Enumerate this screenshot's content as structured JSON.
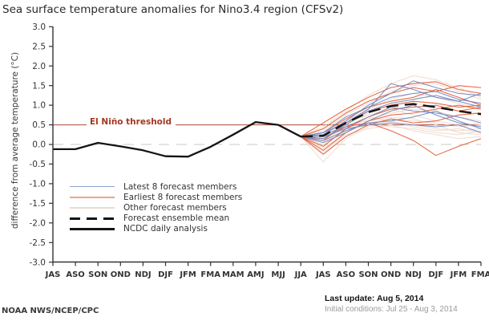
{
  "title": "Sea surface temperature anomalies for Nino3.4 region (CFSv2)",
  "y_axis_label": "difference from average temperature (°C)",
  "threshold": {
    "label": "El Niño threshold",
    "value": 0.5
  },
  "legend": {
    "items": [
      {
        "key": "latest",
        "label": "Latest 8 forecast members"
      },
      {
        "key": "earliest",
        "label": "Earliest 8 forecast members"
      },
      {
        "key": "other",
        "label": "Other forecast members"
      },
      {
        "key": "mean",
        "label": "Forecast ensemble mean"
      },
      {
        "key": "analysis",
        "label": "NCDC daily analysis"
      }
    ]
  },
  "footer": {
    "attribution": "NOAA NWS/NCEP/CPC",
    "last_update": "Last update: Aug 5, 2014",
    "initial_conditions": "Initial conditions: Jul 25 - Aug 3, 2014"
  },
  "colors": {
    "latest": "#7186bd",
    "earliest": "#e25a34",
    "other": "#eed9cd",
    "mean": "#141414",
    "analysis": "#141414",
    "threshold_line": "#ad4a32",
    "threshold_text": "#a5371f",
    "zero_line": "#c9c9c9",
    "axis": "#333333"
  },
  "chart_data": {
    "type": "line",
    "title": "Sea surface temperature anomalies for Nino3.4 region (CFSv2)",
    "xlabel": "",
    "ylabel": "difference from average temperature (°C)",
    "ylim": [
      -3.0,
      3.0
    ],
    "grid": false,
    "legend_position": "lower-left",
    "categories": [
      "JAS",
      "ASO",
      "SON",
      "OND",
      "NDJ",
      "DJF",
      "JFM",
      "FMA",
      "MAM",
      "AMJ",
      "MJJ",
      "JJA",
      "JAS",
      "ASO",
      "SON",
      "OND",
      "NDJ",
      "DJF",
      "JFM",
      "FMA"
    ],
    "y_ticks": [
      {
        "value": 3.0,
        "label": "3.0"
      },
      {
        "value": 2.5,
        "label": "2.5"
      },
      {
        "value": 2.0,
        "label": "2.0"
      },
      {
        "value": 1.5,
        "label": "1.5"
      },
      {
        "value": 1.0,
        "label": "1.0"
      },
      {
        "value": 0.5,
        "label": "0.5"
      },
      {
        "value": 0.0,
        "label": "0.0"
      },
      {
        "value": -0.5,
        "label": "-0.5"
      },
      {
        "value": -1.0,
        "label": "-1.0"
      },
      {
        "value": -1.5,
        "label": "-1.5"
      },
      {
        "value": -2.0,
        "label": "-2.0"
      },
      {
        "value": -2.5,
        "label": "-2.5"
      },
      {
        "value": -3.0,
        "label": "-3.0"
      }
    ],
    "series": [
      {
        "name": "NCDC daily analysis",
        "group": "analysis",
        "start_index": 0,
        "values": [
          -0.12,
          -0.12,
          0.04,
          -0.05,
          -0.15,
          -0.3,
          -0.31,
          -0.06,
          0.25,
          0.57,
          0.5,
          0.2
        ]
      },
      {
        "name": "Forecast ensemble mean",
        "group": "mean",
        "start_index": 11,
        "values": [
          0.2,
          0.22,
          0.55,
          0.82,
          0.98,
          1.03,
          0.95,
          0.85,
          0.77
        ]
      }
    ],
    "members": {
      "latest": {
        "start_index": 11,
        "series": [
          [
            0.2,
            0.25,
            0.6,
            1.0,
            1.3,
            1.62,
            1.45,
            1.3,
            1.25
          ],
          [
            0.2,
            0.3,
            0.55,
            0.9,
            1.55,
            1.4,
            1.2,
            1.1,
            1.3
          ],
          [
            0.2,
            0.15,
            0.5,
            0.85,
            1.05,
            1.15,
            1.25,
            1.1,
            0.95
          ],
          [
            0.2,
            0.25,
            0.45,
            0.7,
            0.95,
            0.85,
            0.8,
            0.7,
            0.55
          ],
          [
            0.2,
            0.1,
            0.35,
            0.55,
            0.6,
            0.7,
            0.85,
            0.6,
            0.4
          ],
          [
            0.2,
            0.2,
            0.4,
            0.5,
            0.55,
            0.5,
            0.45,
            0.5,
            0.3
          ],
          [
            0.2,
            0.05,
            0.3,
            0.6,
            0.85,
            1.0,
            0.75,
            0.55,
            0.45
          ],
          [
            0.2,
            0.3,
            0.7,
            0.95,
            1.2,
            1.3,
            1.35,
            1.15,
            1.05
          ]
        ]
      },
      "earliest": {
        "start_index": 11,
        "series": [
          [
            0.2,
            0.55,
            0.9,
            1.2,
            1.45,
            1.55,
            1.6,
            1.4,
            1.3
          ],
          [
            0.2,
            0.4,
            0.8,
            1.1,
            1.3,
            1.45,
            1.35,
            1.5,
            1.45
          ],
          [
            0.2,
            0.3,
            0.65,
            0.95,
            1.1,
            1.2,
            1.4,
            1.2,
            1.0
          ],
          [
            0.2,
            0.1,
            0.55,
            0.85,
            1.0,
            1.1,
            1.05,
            0.95,
            1.0
          ],
          [
            0.2,
            -0.05,
            0.4,
            0.7,
            0.9,
            0.95,
            1.0,
            0.85,
            0.95
          ],
          [
            0.2,
            -0.15,
            0.3,
            0.6,
            0.75,
            0.8,
            0.9,
            1.0,
            0.9
          ],
          [
            0.2,
            -0.25,
            0.2,
            0.5,
            0.65,
            0.55,
            0.6,
            0.75,
            0.8
          ],
          [
            0.2,
            0.15,
            0.45,
            0.55,
            0.35,
            0.1,
            -0.28,
            -0.05,
            0.15
          ]
        ]
      },
      "other": {
        "start_index": 11,
        "series": [
          [
            0.2,
            0.45,
            0.85,
            1.25,
            1.55,
            1.75,
            1.65,
            1.45,
            1.2
          ],
          [
            0.2,
            0.35,
            0.75,
            1.05,
            1.35,
            1.5,
            1.55,
            1.35,
            1.15
          ],
          [
            0.2,
            0.25,
            0.6,
            0.9,
            1.15,
            1.3,
            1.2,
            1.05,
            0.9
          ],
          [
            0.2,
            0.15,
            0.5,
            0.8,
            1.0,
            1.05,
            0.95,
            0.85,
            0.8
          ],
          [
            0.2,
            0.05,
            0.4,
            0.65,
            0.8,
            0.9,
            0.85,
            0.7,
            0.6
          ],
          [
            0.2,
            -0.1,
            0.3,
            0.55,
            0.65,
            0.6,
            0.55,
            0.45,
            0.5
          ],
          [
            0.2,
            -0.45,
            0.15,
            0.45,
            0.55,
            0.5,
            0.4,
            0.35,
            0.4
          ],
          [
            0.2,
            0.0,
            0.35,
            0.5,
            0.45,
            0.4,
            0.3,
            0.25,
            0.35
          ],
          [
            0.2,
            0.1,
            0.45,
            0.7,
            0.6,
            0.45,
            0.35,
            0.4,
            0.3
          ],
          [
            0.2,
            0.2,
            0.55,
            0.75,
            0.9,
            0.75,
            0.6,
            0.5,
            0.55
          ],
          [
            0.2,
            0.3,
            0.5,
            0.6,
            0.7,
            0.65,
            0.5,
            0.3,
            0.25
          ],
          [
            0.2,
            -0.2,
            0.25,
            0.4,
            0.5,
            0.35,
            0.25,
            0.15,
            0.2
          ]
        ]
      }
    }
  }
}
